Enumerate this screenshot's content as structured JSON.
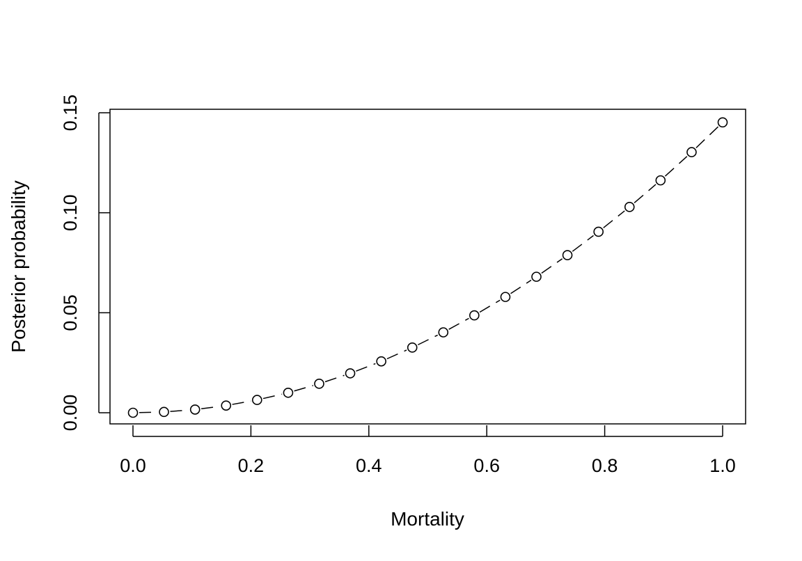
{
  "chart_data": {
    "type": "line",
    "title": "",
    "xlabel": "Mortality",
    "ylabel": "Posterior probability",
    "xlim": [
      0,
      1
    ],
    "ylim": [
      0,
      0.15
    ],
    "x_ticks": [
      {
        "value": 0.0,
        "label": "0.0"
      },
      {
        "value": 0.2,
        "label": "0.2"
      },
      {
        "value": 0.4,
        "label": "0.4"
      },
      {
        "value": 0.6,
        "label": "0.6"
      },
      {
        "value": 0.8,
        "label": "0.8"
      },
      {
        "value": 1.0,
        "label": "1.0"
      }
    ],
    "y_ticks": [
      {
        "value": 0.0,
        "label": "0.00"
      },
      {
        "value": 0.05,
        "label": "0.05"
      },
      {
        "value": 0.1,
        "label": "0.10"
      },
      {
        "value": 0.15,
        "label": "0.15"
      }
    ],
    "grid": false,
    "line_style": "dashed",
    "marker": "open-circle",
    "color": "#000000",
    "series": [
      {
        "x": [
          0.0,
          0.0526,
          0.1053,
          0.1579,
          0.2105,
          0.2632,
          0.3158,
          0.3684,
          0.4211,
          0.4737,
          0.5263,
          0.5789,
          0.6316,
          0.6842,
          0.7368,
          0.7895,
          0.8421,
          0.8947,
          0.9474,
          1.0
        ],
        "y": [
          0.0,
          0.0004,
          0.0016,
          0.0036,
          0.0064,
          0.01,
          0.0145,
          0.0197,
          0.0257,
          0.0326,
          0.0402,
          0.0487,
          0.0579,
          0.068,
          0.0788,
          0.0905,
          0.1029,
          0.1162,
          0.1303,
          0.1452
        ]
      }
    ]
  }
}
